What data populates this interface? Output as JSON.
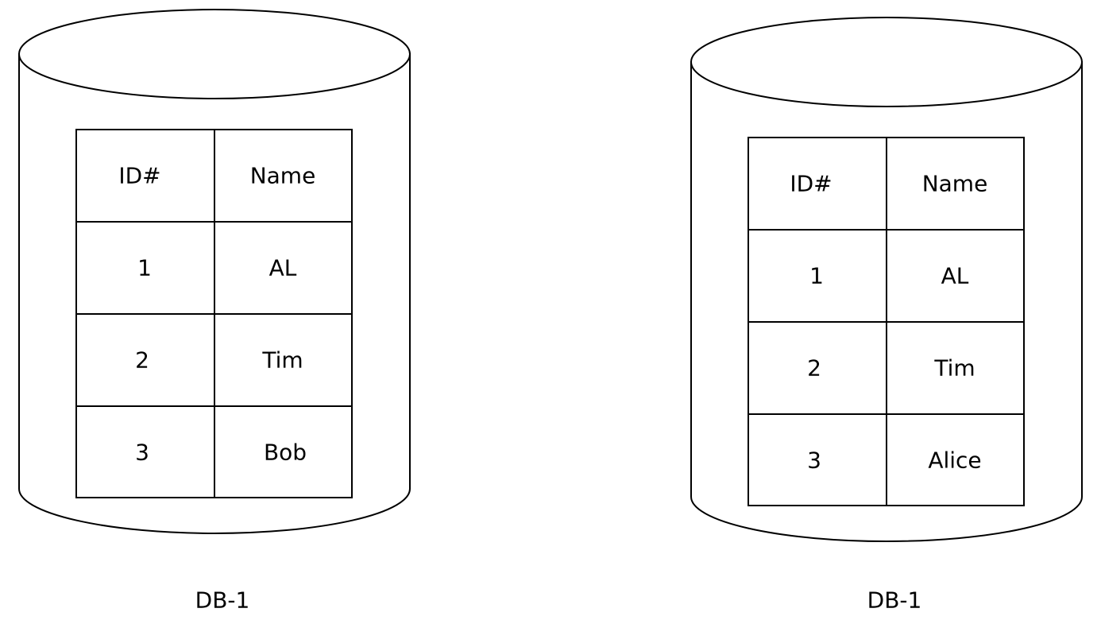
{
  "databases": [
    {
      "caption": "DB-1",
      "table": {
        "headers": [
          "ID#",
          "Name"
        ],
        "rows": [
          [
            "1",
            "AL"
          ],
          [
            "2",
            "Tim"
          ],
          [
            "3",
            "Bob"
          ]
        ]
      }
    },
    {
      "caption": "DB-1",
      "table": {
        "headers": [
          "ID#",
          "Name"
        ],
        "rows": [
          [
            "1",
            "AL"
          ],
          [
            "2",
            "Tim"
          ],
          [
            "3",
            "Alice"
          ]
        ]
      }
    }
  ]
}
